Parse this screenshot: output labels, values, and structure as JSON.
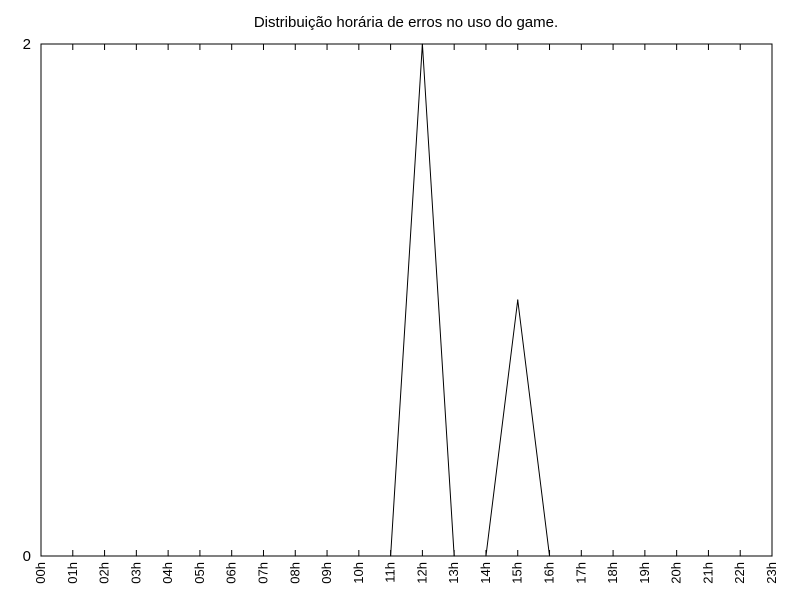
{
  "chart_data": {
    "type": "line",
    "title": "Distribuição horária de erros no uso do game.",
    "xlabel": "",
    "ylabel": "",
    "categories": [
      "00h",
      "01h",
      "02h",
      "03h",
      "04h",
      "05h",
      "06h",
      "07h",
      "08h",
      "09h",
      "10h",
      "11h",
      "12h",
      "13h",
      "14h",
      "15h",
      "16h",
      "17h",
      "18h",
      "19h",
      "20h",
      "21h",
      "22h",
      "23h"
    ],
    "series": [
      {
        "values": [
          0,
          0,
          0,
          0,
          0,
          0,
          0,
          0,
          0,
          0,
          0,
          0,
          2,
          0,
          0,
          1,
          0,
          0,
          0,
          0,
          0,
          0,
          0,
          0
        ]
      }
    ],
    "ylim": [
      0,
      2
    ],
    "yticks": [
      "0",
      "2"
    ],
    "grid": false,
    "legend": "none",
    "colors": {
      "line": "#000000",
      "axis": "#000000",
      "background": "#ffffff"
    }
  }
}
